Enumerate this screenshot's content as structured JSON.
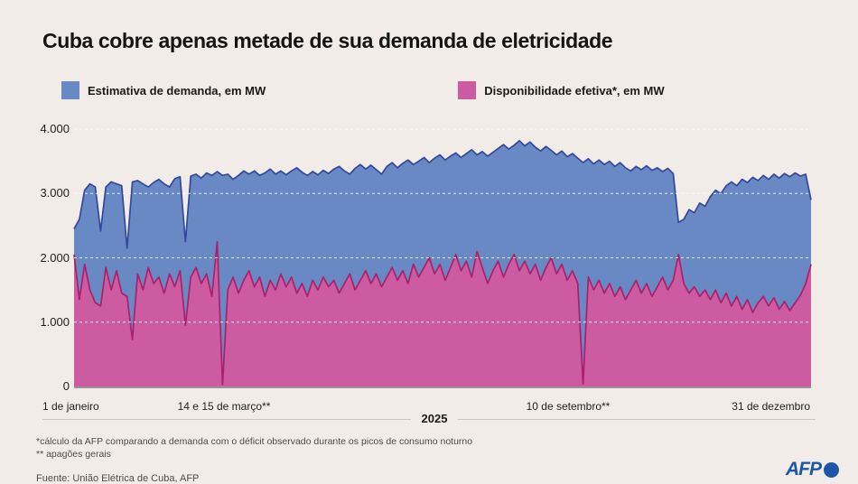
{
  "header": {
    "title": "Cuba cobre apenas metade de sua demanda de eletricidade"
  },
  "legend": {
    "items": [
      {
        "label": "Estimativa de demanda, em MW",
        "color": "#6889c3"
      },
      {
        "label": "Disponibilidade efetiva*, em MW",
        "color": "#cc5ba2"
      }
    ]
  },
  "chart_data": {
    "type": "area",
    "title": "Cuba cobre apenas metade de sua demanda de eletricidade",
    "x_range_labels": [
      "1 de janeiro",
      "31 de dezembro"
    ],
    "x_ticks": {
      "start": "1 de janeiro",
      "event1": "14 e 15 de março**",
      "event2": "10 de setembro**",
      "end": "31 de dezembro",
      "year": "2025"
    },
    "y_axis": {
      "unit": "MW",
      "ylim": [
        0,
        4000
      ],
      "tick_values": [
        0,
        1000,
        2000,
        3000,
        4000
      ],
      "tick_labels": [
        "0",
        "1.000",
        "2.000",
        "3.000",
        "4.000"
      ],
      "grid": "dashed-white"
    },
    "background_color": "#f1ece8",
    "legend_position": "top-left",
    "series": [
      {
        "name": "Estimativa de demanda, em MW",
        "fill_color": "#6889c3",
        "line_color": "#33479b",
        "values": [
          2450,
          2600,
          3050,
          3150,
          3100,
          2420,
          3100,
          3180,
          3150,
          3120,
          2150,
          3180,
          3200,
          3150,
          3100,
          3170,
          3220,
          3150,
          3100,
          3230,
          3260,
          2250,
          3270,
          3300,
          3240,
          3320,
          3280,
          3340,
          3280,
          3300,
          3220,
          3280,
          3350,
          3300,
          3350,
          3280,
          3320,
          3380,
          3300,
          3350,
          3290,
          3350,
          3400,
          3330,
          3280,
          3340,
          3290,
          3360,
          3310,
          3380,
          3420,
          3350,
          3300,
          3390,
          3450,
          3380,
          3440,
          3370,
          3300,
          3420,
          3480,
          3400,
          3470,
          3520,
          3450,
          3500,
          3560,
          3480,
          3550,
          3600,
          3520,
          3580,
          3630,
          3560,
          3620,
          3680,
          3600,
          3650,
          3580,
          3640,
          3700,
          3760,
          3690,
          3750,
          3820,
          3740,
          3800,
          3720,
          3660,
          3730,
          3670,
          3600,
          3660,
          3570,
          3620,
          3550,
          3480,
          3540,
          3460,
          3520,
          3450,
          3500,
          3420,
          3480,
          3400,
          3350,
          3420,
          3370,
          3430,
          3360,
          3400,
          3340,
          3390,
          3310,
          2550,
          2600,
          2750,
          2700,
          2850,
          2800,
          2950,
          3050,
          3000,
          3120,
          3180,
          3120,
          3220,
          3170,
          3250,
          3200,
          3280,
          3220,
          3300,
          3240,
          3310,
          3260,
          3320,
          3270,
          3300,
          2900
        ]
      },
      {
        "name": "Disponibilidade efetiva*, em MW",
        "fill_color": "#cc5ba2",
        "line_color": "#ab2068",
        "values": [
          2050,
          1350,
          1900,
          1500,
          1300,
          1250,
          1850,
          1500,
          1800,
          1450,
          1400,
          730,
          1750,
          1500,
          1850,
          1600,
          1700,
          1450,
          1750,
          1550,
          1800,
          950,
          1700,
          1850,
          1600,
          1750,
          1400,
          2250,
          30,
          1500,
          1700,
          1450,
          1650,
          1800,
          1550,
          1700,
          1400,
          1650,
          1500,
          1750,
          1550,
          1700,
          1450,
          1600,
          1400,
          1650,
          1500,
          1700,
          1550,
          1650,
          1450,
          1600,
          1750,
          1500,
          1650,
          1800,
          1600,
          1750,
          1550,
          1700,
          1850,
          1650,
          1800,
          1600,
          1900,
          1700,
          1850,
          2000,
          1750,
          1900,
          1650,
          1850,
          2050,
          1800,
          1950,
          1700,
          2100,
          1850,
          1600,
          1800,
          1950,
          1700,
          1900,
          2050,
          1800,
          1950,
          1750,
          1900,
          1650,
          1850,
          2000,
          1750,
          1900,
          1650,
          1800,
          1600,
          40,
          1700,
          1500,
          1650,
          1450,
          1600,
          1400,
          1550,
          1350,
          1500,
          1650,
          1450,
          1600,
          1400,
          1550,
          1700,
          1500,
          1650,
          2050,
          1600,
          1450,
          1550,
          1400,
          1500,
          1350,
          1500,
          1300,
          1450,
          1250,
          1400,
          1200,
          1350,
          1150,
          1300,
          1400,
          1250,
          1380,
          1200,
          1320,
          1180,
          1300,
          1420,
          1600,
          1900
        ]
      }
    ],
    "annotations": {
      "event1_note": "apagão geral 14-15 março",
      "event2_note": "apagão geral 10 setembro"
    }
  },
  "footnotes": {
    "line1": "*cálculo da AFP comparando a demanda com o déficit observado durante os picos de consumo noturno",
    "line2": "** apagões gerais",
    "source": "Fuente: União Elétrica de Cuba, AFP"
  },
  "branding": {
    "logo_text": "AFP"
  }
}
